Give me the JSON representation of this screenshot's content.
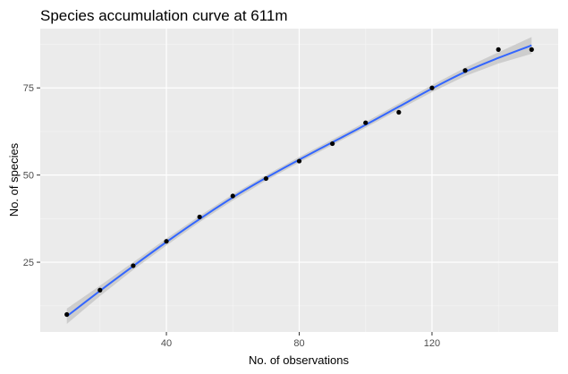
{
  "chart_data": {
    "type": "scatter",
    "title": "Species accumulation curve at 611m",
    "xlabel": "No. of observations",
    "ylabel": "No. of species",
    "xlim": [
      2,
      158
    ],
    "ylim": [
      5,
      92
    ],
    "x_ticks": [
      40,
      80,
      120
    ],
    "y_ticks": [
      25,
      50,
      75
    ],
    "x_tick_labels": [
      "40",
      "80",
      "120"
    ],
    "y_tick_labels": [
      "25",
      "50",
      "75"
    ],
    "x_minor_ticks": [
      20,
      60,
      100,
      140
    ],
    "y_minor_ticks": [
      12.5,
      37.5,
      62.5,
      87.5
    ],
    "grid": true,
    "legend": "none",
    "series": [
      {
        "type": "scatter",
        "x": [
          10,
          20,
          30,
          40,
          50,
          60,
          70,
          80,
          90,
          100,
          110,
          120,
          130,
          140,
          150
        ],
        "y": [
          10,
          17,
          24,
          31,
          38,
          44,
          49,
          54,
          59,
          65,
          68,
          75,
          80,
          86,
          86
        ]
      },
      {
        "type": "smooth",
        "x": [
          10,
          20,
          30,
          40,
          50,
          60,
          70,
          80,
          90,
          100,
          110,
          120,
          130,
          140,
          150
        ],
        "y": [
          9.5,
          16.8,
          23.9,
          30.8,
          37.4,
          43.6,
          49.2,
          54.4,
          59.4,
          64.4,
          69.6,
          74.8,
          79.6,
          83.6,
          87.2
        ],
        "band_half_width": [
          2.2,
          1.5,
          1.1,
          1.0,
          0.9,
          0.9,
          0.8,
          0.8,
          0.8,
          0.8,
          0.9,
          1.0,
          1.2,
          1.6,
          2.4
        ]
      }
    ],
    "colors": {
      "panel": "#ebebeb",
      "grid_major": "#ffffff",
      "grid_minor": "#f5f5f5",
      "points": "#000000",
      "smooth_line": "#3366ff",
      "band": "#c8c8c8",
      "tick_label": "#4d4d4d"
    }
  }
}
